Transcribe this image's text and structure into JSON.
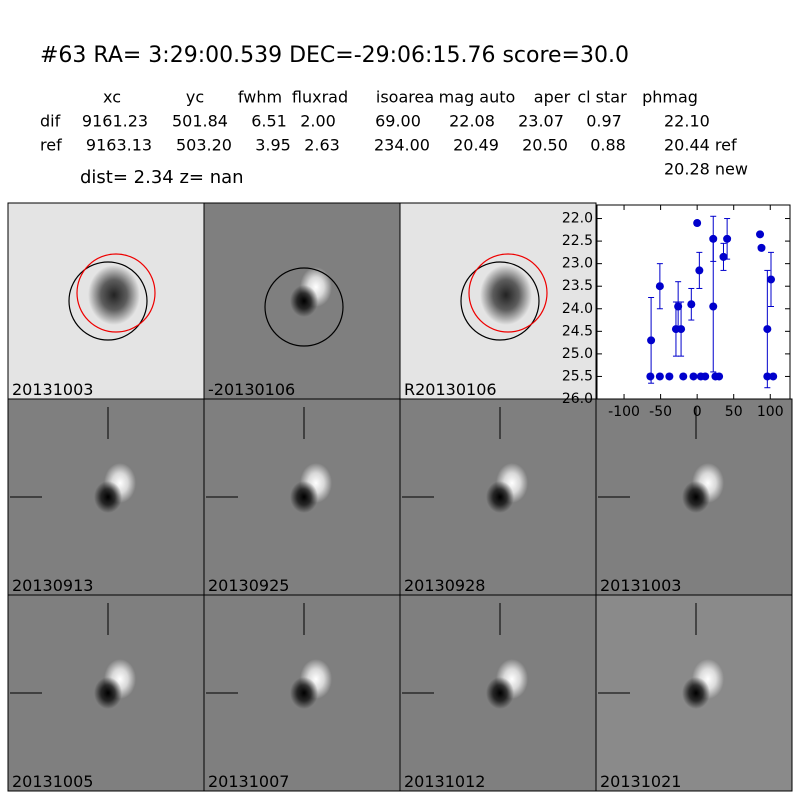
{
  "header": {
    "title": "#63   RA= 3:29:00.539 DEC=-29:06:15.76      score=30.0",
    "columns": [
      "xc",
      "yc",
      "fwhm",
      "fluxrad",
      "isoarea",
      "mag auto",
      "aper",
      "cl star",
      "phmag"
    ],
    "rows": [
      [
        "dif",
        "9161.23",
        "501.84",
        "6.51",
        "2.00",
        "69.00",
        "22.08",
        "23.07",
        "0.97",
        "22.10"
      ],
      [
        "ref",
        "9163.13",
        "503.20",
        "3.95",
        "2.63",
        "234.00",
        "20.49",
        "20.50",
        "0.88",
        "20.44 ref"
      ]
    ],
    "extra": "20.28 new",
    "dist": "dist=  2.34      z=   nan"
  },
  "panels": [
    {
      "label": "20131003",
      "style": "light"
    },
    {
      "label": "-20130106",
      "style": "dif"
    },
    {
      "label": "R20130106",
      "style": "light"
    },
    {
      "label": "20130913"
    },
    {
      "label": "20130925"
    },
    {
      "label": "20130928"
    },
    {
      "label": "20131003",
      "color": "#ff0000"
    },
    {
      "label": "20131005"
    },
    {
      "label": "20131007"
    },
    {
      "label": "20131012"
    },
    {
      "label": "20131021"
    }
  ],
  "chart_data": {
    "type": "scatter",
    "color": "#0000cc",
    "x": [
      -64,
      -63,
      -51,
      -51,
      -38,
      -29,
      -26,
      -22,
      -19,
      -8,
      -5,
      0,
      3,
      5,
      11,
      22,
      22,
      25,
      30,
      36,
      41,
      86,
      88,
      96,
      96,
      101,
      104
    ],
    "values": [
      25.5,
      24.7,
      25.5,
      23.5,
      25.5,
      24.45,
      23.95,
      24.45,
      25.5,
      23.9,
      25.5,
      22.1,
      23.15,
      25.5,
      25.5,
      22.45,
      23.95,
      25.5,
      25.5,
      22.85,
      22.45,
      22.35,
      22.65,
      24.45,
      25.5,
      23.35,
      25.5
    ],
    "errors": [
      0.05,
      0.95,
      0.05,
      0.5,
      0.05,
      0.6,
      0.55,
      0.6,
      0.05,
      0.35,
      0.05,
      0.05,
      0.4,
      0.05,
      0.05,
      0.5,
      1.45,
      0.05,
      0.05,
      0.3,
      0.45,
      0.05,
      0.05,
      1.3,
      0.05,
      0.6,
      0.05
    ],
    "xlim": [
      -137,
      127
    ],
    "ylim": [
      26.0,
      21.7
    ],
    "xticks": [
      -100,
      -50,
      0,
      50,
      100
    ],
    "yticks": [
      {
        "value": 22.0,
        "label": "22.0"
      },
      {
        "value": 22.5,
        "label": "22.5"
      },
      {
        "value": 23.0,
        "label": "23.0"
      },
      {
        "value": 23.5,
        "label": "23.5"
      },
      {
        "value": 24.0,
        "label": "24.0"
      },
      {
        "value": 24.5,
        "label": "24.5"
      },
      {
        "value": 25.0,
        "label": "25.0"
      },
      {
        "value": 25.5,
        "label": "25.5"
      },
      {
        "value": 26.0,
        "label": "26.0"
      }
    ]
  }
}
